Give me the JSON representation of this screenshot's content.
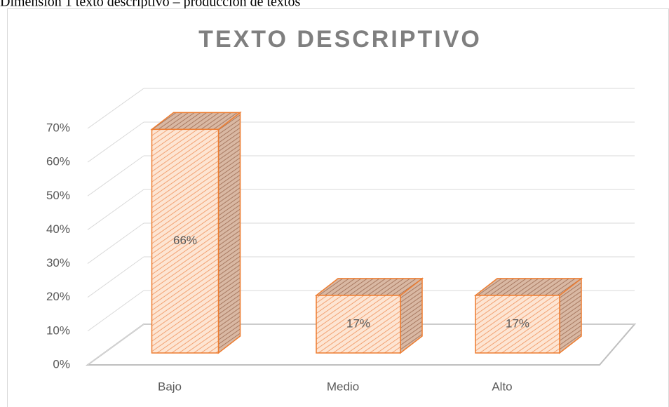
{
  "caption": "Dimensión 1 texto descriptivo – producción de textos",
  "chart_data": {
    "type": "bar3d",
    "title": "TEXTO DESCRIPTIVO",
    "categories": [
      "Bajo",
      "Medio",
      "Alto"
    ],
    "values": [
      66,
      17,
      17
    ],
    "value_labels": [
      "66%",
      "17%",
      "17%"
    ],
    "color": "#ed7d31",
    "ylim": [
      0,
      70
    ],
    "yticks": [
      {
        "value": 0,
        "label": "0%"
      },
      {
        "value": 10,
        "label": "10%"
      },
      {
        "value": 20,
        "label": "20%"
      },
      {
        "value": 30,
        "label": "30%"
      },
      {
        "value": 40,
        "label": "40%"
      },
      {
        "value": 50,
        "label": "50%"
      },
      {
        "value": 60,
        "label": "60%"
      },
      {
        "value": 70,
        "label": "70%"
      }
    ],
    "grid": true
  }
}
